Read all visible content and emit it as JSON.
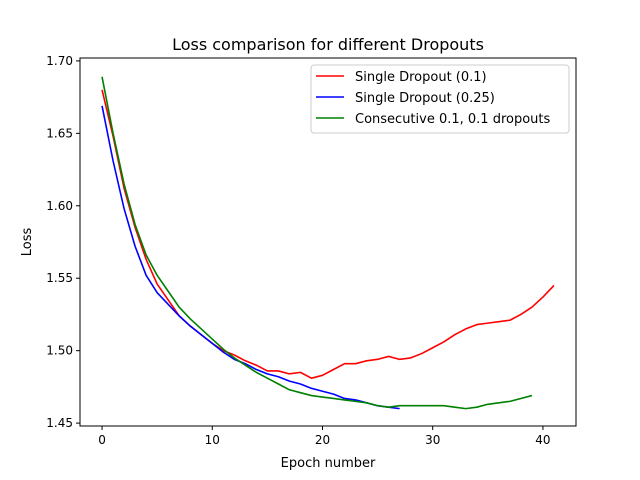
{
  "chart_data": {
    "type": "line",
    "title": "Loss comparison for different Dropouts",
    "xlabel": "Epoch number",
    "ylabel": "Loss",
    "xlim": [
      -2,
      43
    ],
    "ylim": [
      1.448,
      1.702
    ],
    "xticks": [
      "0",
      "10",
      "20",
      "30",
      "40"
    ],
    "yticks": [
      "1.45",
      "1.50",
      "1.55",
      "1.60",
      "1.65",
      "1.70"
    ],
    "grid": false,
    "legend_position": "top-right",
    "series": [
      {
        "name": "Single Dropout (0.1)",
        "color": "#ff0000",
        "x": [
          0,
          1,
          2,
          3,
          4,
          5,
          6,
          7,
          8,
          9,
          10,
          11,
          12,
          13,
          14,
          15,
          16,
          17,
          18,
          19,
          20,
          21,
          22,
          23,
          24,
          25,
          26,
          27,
          28,
          29,
          30,
          31,
          32,
          33,
          34,
          35,
          36,
          37,
          38,
          39,
          40,
          41
        ],
        "y": [
          1.68,
          1.648,
          1.612,
          1.585,
          1.563,
          1.546,
          1.535,
          1.524,
          1.517,
          1.511,
          1.505,
          1.5,
          1.497,
          1.493,
          1.49,
          1.486,
          1.486,
          1.484,
          1.485,
          1.481,
          1.483,
          1.487,
          1.491,
          1.491,
          1.493,
          1.494,
          1.496,
          1.494,
          1.495,
          1.498,
          1.502,
          1.506,
          1.511,
          1.515,
          1.518,
          1.519,
          1.52,
          1.521,
          1.525,
          1.53,
          1.537,
          1.545
        ]
      },
      {
        "name": "Single Dropout (0.25)",
        "color": "#0000ff",
        "x": [
          0,
          1,
          2,
          3,
          4,
          5,
          6,
          7,
          8,
          9,
          10,
          11,
          12,
          13,
          14,
          15,
          16,
          17,
          18,
          19,
          20,
          21,
          22,
          23,
          24,
          25,
          26,
          27
        ],
        "y": [
          1.669,
          1.631,
          1.598,
          1.572,
          1.552,
          1.54,
          1.532,
          1.524,
          1.517,
          1.511,
          1.505,
          1.499,
          1.494,
          1.491,
          1.487,
          1.484,
          1.482,
          1.479,
          1.477,
          1.474,
          1.472,
          1.47,
          1.467,
          1.466,
          1.464,
          1.462,
          1.461,
          1.46
        ]
      },
      {
        "name": "Consecutive 0.1, 0.1 dropouts",
        "color": "#008000",
        "x": [
          0,
          1,
          2,
          3,
          4,
          5,
          6,
          7,
          8,
          9,
          10,
          11,
          12,
          13,
          14,
          15,
          16,
          17,
          18,
          19,
          20,
          21,
          22,
          23,
          24,
          25,
          26,
          27,
          28,
          29,
          30,
          31,
          32,
          33,
          34,
          35,
          36,
          37,
          38,
          39
        ],
        "y": [
          1.689,
          1.65,
          1.615,
          1.587,
          1.566,
          1.552,
          1.541,
          1.53,
          1.522,
          1.515,
          1.508,
          1.501,
          1.495,
          1.49,
          1.485,
          1.481,
          1.477,
          1.473,
          1.471,
          1.469,
          1.468,
          1.467,
          1.466,
          1.465,
          1.464,
          1.462,
          1.461,
          1.462,
          1.462,
          1.462,
          1.462,
          1.462,
          1.461,
          1.46,
          1.461,
          1.463,
          1.464,
          1.465,
          1.467,
          1.469
        ]
      }
    ]
  }
}
